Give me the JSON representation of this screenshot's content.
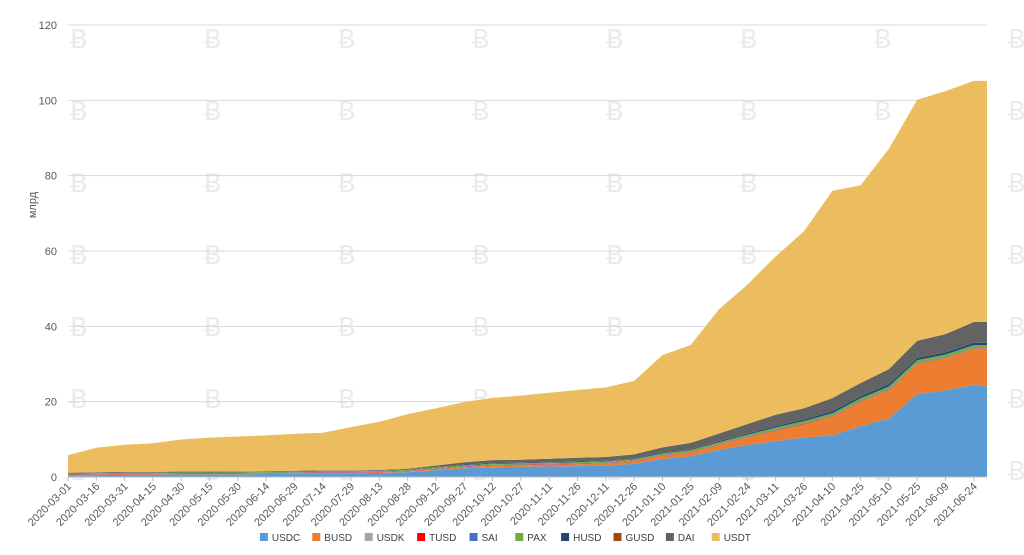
{
  "chart_data": {
    "type": "area",
    "stacked": true,
    "title": "",
    "xlabel": "",
    "ylabel": "млрд",
    "ylim": [
      0,
      120
    ],
    "yticks": [
      0,
      20,
      40,
      60,
      80,
      100,
      120
    ],
    "grid": true,
    "legend_position": "bottom",
    "x_ticks": [
      "2020-03-01",
      "2020-03-16",
      "2020-03-31",
      "2020-04-15",
      "2020-04-30",
      "2020-05-15",
      "2020-05-30",
      "2020-06-14",
      "2020-06-29",
      "2020-07-14",
      "2020-07-29",
      "2020-08-13",
      "2020-08-28",
      "2020-09-12",
      "2020-09-27",
      "2020-10-12",
      "2020-10-27",
      "2020-11-11",
      "2020-11-26",
      "2020-12-11",
      "2020-12-26",
      "2021-01-10",
      "2021-01-25",
      "2021-02-09",
      "2021-02-24",
      "2021-03-11",
      "2021-03-26",
      "2021-04-10",
      "2021-04-25",
      "2021-05-10",
      "2021-05-25",
      "2021-06-09",
      "2021-06-24"
    ],
    "x_end": "2021-07-01",
    "x": [
      "2020-03-01",
      "2020-03-16",
      "2020-03-31",
      "2020-04-15",
      "2020-04-30",
      "2020-05-15",
      "2020-05-30",
      "2020-06-14",
      "2020-06-29",
      "2020-07-14",
      "2020-07-29",
      "2020-08-13",
      "2020-08-28",
      "2020-09-12",
      "2020-09-27",
      "2020-10-12",
      "2020-10-27",
      "2020-11-11",
      "2020-11-26",
      "2020-12-11",
      "2020-12-26",
      "2021-01-10",
      "2021-01-25",
      "2021-02-09",
      "2021-02-24",
      "2021-03-11",
      "2021-03-26",
      "2021-04-10",
      "2021-04-25",
      "2021-05-10",
      "2021-05-25",
      "2021-06-09",
      "2021-06-24",
      "2021-07-01"
    ],
    "series": [
      {
        "name": "USDC",
        "color": "#5b9bd5",
        "values": [
          0.4,
          0.5,
          0.6,
          0.6,
          0.7,
          0.7,
          0.7,
          0.8,
          0.9,
          1.0,
          1.0,
          1.1,
          1.3,
          1.8,
          2.3,
          2.6,
          2.7,
          2.8,
          2.9,
          3.0,
          3.5,
          4.8,
          5.5,
          7.2,
          8.5,
          9.5,
          10.5,
          11.0,
          13.5,
          15.5,
          22.0,
          23.0,
          24.5,
          24.0
        ]
      },
      {
        "name": "BUSD",
        "color": "#ed7d31",
        "values": [
          0.1,
          0.1,
          0.1,
          0.1,
          0.1,
          0.1,
          0.1,
          0.1,
          0.1,
          0.1,
          0.1,
          0.1,
          0.15,
          0.2,
          0.3,
          0.4,
          0.4,
          0.45,
          0.5,
          0.6,
          0.7,
          0.8,
          1.0,
          1.3,
          2.0,
          2.8,
          3.5,
          5.0,
          6.5,
          7.5,
          8.0,
          8.5,
          9.5,
          10.0
        ]
      },
      {
        "name": "USDK",
        "color": "#a5a5a5",
        "values": [
          0.03,
          0.03,
          0.03,
          0.03,
          0.03,
          0.03,
          0.03,
          0.03,
          0.03,
          0.03,
          0.03,
          0.03,
          0.03,
          0.03,
          0.03,
          0.03,
          0.03,
          0.03,
          0.03,
          0.03,
          0.03,
          0.03,
          0.03,
          0.03,
          0.03,
          0.03,
          0.03,
          0.03,
          0.03,
          0.03,
          0.03,
          0.03,
          0.03,
          0.03
        ]
      },
      {
        "name": "TUSD",
        "color": "#ff0000",
        "values": [
          0.1,
          0.1,
          0.1,
          0.1,
          0.1,
          0.1,
          0.1,
          0.1,
          0.1,
          0.1,
          0.1,
          0.1,
          0.1,
          0.1,
          0.1,
          0.1,
          0.1,
          0.1,
          0.1,
          0.1,
          0.1,
          0.1,
          0.1,
          0.1,
          0.1,
          0.1,
          0.1,
          0.1,
          0.1,
          0.1,
          0.1,
          0.1,
          0.1,
          0.1
        ]
      },
      {
        "name": "SAI",
        "color": "#4472c4",
        "values": [
          0.1,
          0.1,
          0.1,
          0.1,
          0.1,
          0.1,
          0.1,
          0.1,
          0.1,
          0.1,
          0.1,
          0.1,
          0.1,
          0.1,
          0.1,
          0.1,
          0.1,
          0.1,
          0.1,
          0.1,
          0.1,
          0.1,
          0.1,
          0.1,
          0.1,
          0.1,
          0.1,
          0.1,
          0.1,
          0.1,
          0.1,
          0.1,
          0.1,
          0.1
        ]
      },
      {
        "name": "PAX",
        "color": "#70ad47",
        "values": [
          0.2,
          0.2,
          0.2,
          0.2,
          0.2,
          0.2,
          0.2,
          0.2,
          0.2,
          0.2,
          0.2,
          0.2,
          0.2,
          0.3,
          0.3,
          0.3,
          0.3,
          0.3,
          0.3,
          0.3,
          0.3,
          0.4,
          0.4,
          0.5,
          0.5,
          0.6,
          0.6,
          0.7,
          0.7,
          0.8,
          0.8,
          0.8,
          0.8,
          0.8
        ]
      },
      {
        "name": "HUSD",
        "color": "#264478",
        "values": [
          0.1,
          0.1,
          0.1,
          0.1,
          0.1,
          0.1,
          0.1,
          0.1,
          0.1,
          0.1,
          0.1,
          0.1,
          0.1,
          0.1,
          0.15,
          0.15,
          0.15,
          0.15,
          0.15,
          0.15,
          0.15,
          0.2,
          0.2,
          0.3,
          0.3,
          0.4,
          0.4,
          0.5,
          0.5,
          0.6,
          0.6,
          0.6,
          0.6,
          0.6
        ]
      },
      {
        "name": "GUSD",
        "color": "#9e480e",
        "values": [
          0.02,
          0.02,
          0.02,
          0.02,
          0.02,
          0.02,
          0.02,
          0.02,
          0.02,
          0.02,
          0.02,
          0.02,
          0.02,
          0.02,
          0.02,
          0.02,
          0.02,
          0.02,
          0.02,
          0.02,
          0.02,
          0.02,
          0.02,
          0.02,
          0.02,
          0.02,
          0.02,
          0.02,
          0.02,
          0.02,
          0.02,
          0.02,
          0.02,
          0.02
        ]
      },
      {
        "name": "DAI",
        "color": "#636363",
        "values": [
          0.1,
          0.1,
          0.1,
          0.1,
          0.1,
          0.1,
          0.1,
          0.1,
          0.1,
          0.1,
          0.1,
          0.1,
          0.2,
          0.4,
          0.6,
          0.8,
          0.8,
          0.9,
          1.0,
          1.0,
          1.1,
          1.4,
          1.7,
          2.0,
          2.5,
          3.0,
          3.0,
          3.5,
          3.5,
          4.0,
          4.5,
          4.8,
          5.5,
          5.5
        ]
      },
      {
        "name": "USDT",
        "color": "#ebbd5f",
        "values": [
          4.6,
          6.5,
          7.2,
          7.6,
          8.5,
          9.0,
          9.3,
          9.5,
          9.8,
          10.0,
          11.5,
          12.8,
          14.5,
          15.2,
          16.0,
          16.5,
          17.0,
          17.5,
          18.0,
          18.5,
          19.5,
          24.5,
          26.0,
          33.0,
          37.0,
          42.0,
          47.0,
          55.0,
          52.5,
          58.5,
          64.0,
          64.5,
          64.0,
          64.0
        ]
      }
    ]
  },
  "watermark": {
    "glyph": "Ƀ"
  }
}
